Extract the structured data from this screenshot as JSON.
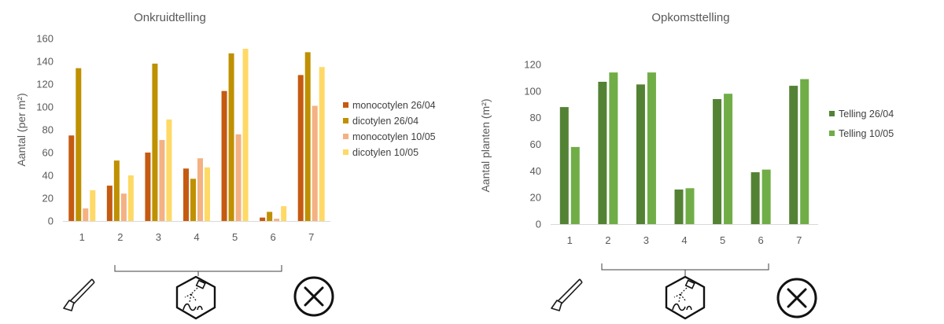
{
  "chart_data": [
    {
      "type": "bar",
      "title": "Onkruidtelling",
      "xlabel": "",
      "ylabel": "Aantal (per m²)",
      "categories": [
        "1",
        "2",
        "3",
        "4",
        "5",
        "6",
        "7"
      ],
      "ylim": [
        0,
        160
      ],
      "yticks": [
        0,
        20,
        40,
        60,
        80,
        100,
        120,
        140,
        160
      ],
      "grid": false,
      "legend_position": "right",
      "series": [
        {
          "name": "monocotylen 26/04",
          "color": "#C55A11",
          "values": [
            75,
            31,
            60,
            46,
            114,
            3,
            128
          ]
        },
        {
          "name": "dicotylen 26/04",
          "color": "#BF9000",
          "values": [
            134,
            53,
            138,
            37,
            147,
            8,
            148
          ]
        },
        {
          "name": "monocotylen 10/05",
          "color": "#F4B183",
          "values": [
            11,
            24,
            71,
            55,
            76,
            2,
            101
          ]
        },
        {
          "name": "dicotylen 10/05",
          "color": "#FFD966",
          "values": [
            27,
            40,
            89,
            47,
            151,
            13,
            135
          ]
        }
      ]
    },
    {
      "type": "bar",
      "title": "Opkomsttelling",
      "xlabel": "",
      "ylabel": "Aantal planten (m²)",
      "categories": [
        "1",
        "2",
        "3",
        "4",
        "5",
        "6",
        "7"
      ],
      "ylim": [
        0,
        120
      ],
      "yticks": [
        0,
        20,
        40,
        60,
        80,
        100,
        120
      ],
      "grid": false,
      "legend_position": "right",
      "series": [
        {
          "name": "Telling 26/04",
          "color": "#548235",
          "values": [
            88,
            107,
            105,
            26,
            94,
            39,
            104
          ]
        },
        {
          "name": "Telling 10/05",
          "color": "#70AD47",
          "values": [
            58,
            114,
            114,
            27,
            98,
            41,
            109
          ]
        }
      ]
    }
  ],
  "icons": {
    "treatment_1": "hoe-icon",
    "treatment_2_6": "sprayer-icon",
    "treatment_7": "no-treatment-icon"
  }
}
